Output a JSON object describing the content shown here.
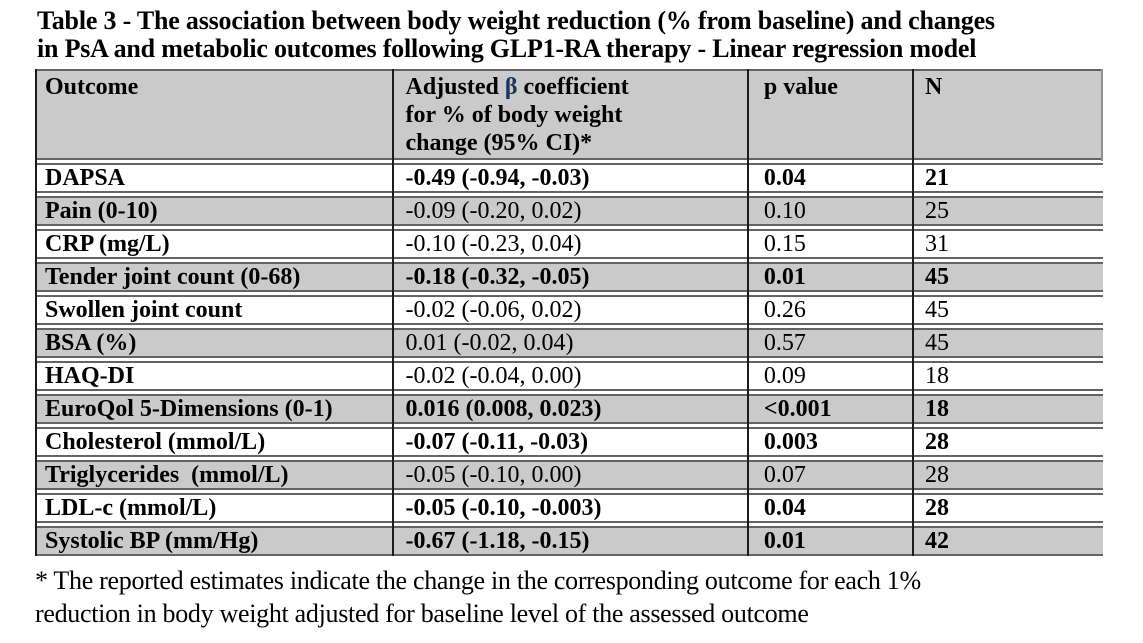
{
  "document": {
    "title": "Table 3 - The association between body weight reduction (% from baseline) and changes\nin PsA and metabolic outcomes following GLP1-RA therapy - Linear regression model",
    "footnote": "* The reported estimates indicate the change in the corresponding outcome for each 1%\nreduction in body weight adjusted for baseline level of the assessed outcome"
  },
  "table": {
    "header": {
      "outcome": "Outcome",
      "beta_prefix": "Adjusted ",
      "beta_symbol": "β",
      "beta_suffix": " coefficient\nfor % of body weight\nchange (95% CI)*",
      "p_value": "p value",
      "n": "N"
    },
    "rows": [
      {
        "outcome": "DAPSA",
        "beta": "-0.49 (-0.94, -0.03)",
        "p": "0.04",
        "n": "21",
        "bold": true,
        "shaded": false
      },
      {
        "outcome": "Pain (0-10)",
        "beta": "-0.09 (-0.20, 0.02)",
        "p": "0.10",
        "n": "25",
        "bold": false,
        "shaded": true
      },
      {
        "outcome": "CRP (mg/L)",
        "beta": "-0.10 (-0.23, 0.04)",
        "p": "0.15",
        "n": "31",
        "bold": false,
        "shaded": false
      },
      {
        "outcome": "Tender joint count (0-68)",
        "beta": "-0.18 (-0.32, -0.05)",
        "p": "0.01",
        "n": "45",
        "bold": true,
        "shaded": true
      },
      {
        "outcome": "Swollen joint count",
        "beta": "-0.02 (-0.06, 0.02)",
        "p": "0.26",
        "n": "45",
        "bold": false,
        "shaded": false
      },
      {
        "outcome": "BSA (%)",
        "beta": "0.01 (-0.02, 0.04)",
        "p": "0.57",
        "n": "45",
        "bold": false,
        "shaded": true
      },
      {
        "outcome": "HAQ-DI",
        "beta": "-0.02 (-0.04, 0.00)",
        "p": "0.09",
        "n": "18",
        "bold": false,
        "shaded": false
      },
      {
        "outcome": "EuroQol 5-Dimensions (0-1)",
        "beta": "0.016 (0.008, 0.023)",
        "p": "<0.001",
        "n": "18",
        "bold": true,
        "shaded": true
      },
      {
        "outcome": "Cholesterol (mmol/L)",
        "beta": "-0.07 (-0.11, -0.03)",
        "p": "0.003",
        "n": "28",
        "bold": true,
        "shaded": false
      },
      {
        "outcome": "Triglycerides  (mmol/L)",
        "beta": "-0.05 (-0.10, 0.00)",
        "p": "0.07",
        "n": "28",
        "bold": false,
        "shaded": true
      },
      {
        "outcome": "LDL-c (mmol/L)",
        "beta": "-0.05 (-0.10, -0.003)",
        "p": "0.04",
        "n": "28",
        "bold": true,
        "shaded": false
      },
      {
        "outcome": "Systolic BP (mm/Hg)",
        "beta": "-0.67 (-1.18, -0.15)",
        "p": "0.01",
        "n": "42",
        "bold": true,
        "shaded": true
      }
    ]
  },
  "colors": {
    "row_shade": "#cacaca",
    "beta_symbol_color": "#17365d",
    "horizontal_rule": "#636363",
    "vertical_rule": "#1c1c1c"
  }
}
